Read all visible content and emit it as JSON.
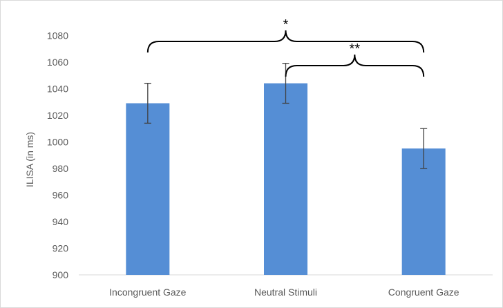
{
  "chart_data": {
    "type": "bar",
    "title": "",
    "xlabel": "",
    "ylabel": "ILISA (in ms)",
    "ylim": [
      900,
      1090
    ],
    "yticks": [
      900,
      920,
      940,
      960,
      980,
      1000,
      1020,
      1040,
      1060,
      1080
    ],
    "grid": false,
    "legend": "none",
    "categories": [
      "Incongruent Gaze",
      "Neutral Stimuli",
      "Congruent Gaze"
    ],
    "values": [
      1029,
      1044,
      995
    ],
    "error": [
      15,
      15,
      15
    ],
    "bar_color": "#558ED5",
    "significance": [
      {
        "from": 0,
        "to": 2,
        "label": "*"
      },
      {
        "from": 1,
        "to": 2,
        "label": "**"
      }
    ]
  }
}
